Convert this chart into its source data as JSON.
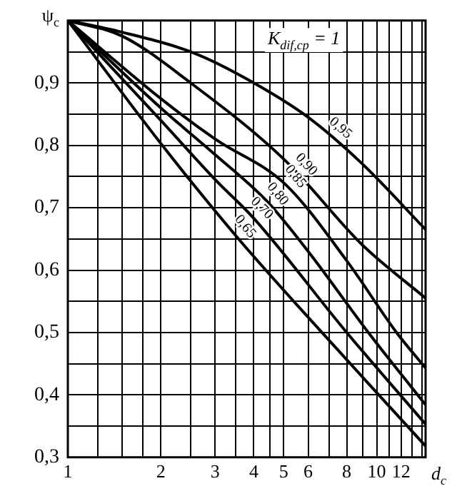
{
  "chart_data": {
    "type": "line",
    "xlabel": "d$_{c}$",
    "ylabel": "ψ$_{c}$",
    "log": "x",
    "grid": true,
    "line_style": "solid",
    "annotations": [
      "K$_{dif,cp}$ = 1"
    ],
    "xlim": [
      1,
      14.4
    ],
    "ylim": [
      0.3,
      1
    ],
    "xticks": [
      1,
      {
        "value": 1.25,
        "label": null
      },
      {
        "value": 1.5,
        "label": null
      },
      {
        "value": 1.75,
        "label": null
      },
      2,
      {
        "value": 2.5,
        "label": null
      },
      3,
      {
        "value": 3.5,
        "label": null
      },
      4,
      {
        "value": 4.5,
        "label": null
      },
      5,
      6,
      {
        "value": 7,
        "label": null
      },
      8,
      {
        "value": 9,
        "label": null
      },
      10,
      {
        "value": 11,
        "label": null
      },
      12,
      {
        "value": 13,
        "label": null
      },
      {
        "value": 14,
        "label": null
      }
    ],
    "yticks": [
      {
        "value": 0.3,
        "label": "0,3"
      },
      {
        "value": 0.35,
        "label": null
      },
      {
        "value": 0.4,
        "label": "0,4"
      },
      {
        "value": 0.45,
        "label": null
      },
      {
        "value": 0.5,
        "label": "0,5"
      },
      {
        "value": 0.55,
        "label": null
      },
      {
        "value": 0.6,
        "label": "0,6"
      },
      {
        "value": 0.65,
        "label": null
      },
      {
        "value": 0.7,
        "label": "0,7"
      },
      {
        "value": 0.75,
        "label": null
      },
      {
        "value": 0.8,
        "label": "0,8"
      },
      {
        "value": 0.85,
        "label": null
      },
      {
        "value": 0.9,
        "label": "0,9"
      },
      {
        "value": 0.95,
        "label": null
      },
      {
        "value": 1,
        "label": null
      }
    ],
    "series": [
      {
        "name": "0,95",
        "color": "#000000",
        "x": [
          1,
          1.45,
          2.56,
          3.81,
          6,
          9,
          14.4
        ],
        "values": [
          1,
          0.983,
          0.948,
          0.906,
          0.845,
          0.77,
          0.665
        ]
      },
      {
        "name": "0,90",
        "color": "#000000",
        "x": [
          1,
          1.5,
          2.5,
          5.05,
          9,
          14.4
        ],
        "values": [
          1,
          0.975,
          0.9,
          0.776,
          0.64,
          0.555
        ]
      },
      {
        "name": "0,85",
        "color": "#000000",
        "x": [
          1,
          2,
          3,
          5.05,
          8,
          11.6,
          14.4
        ],
        "values": [
          1,
          0.875,
          0.81,
          0.738,
          0.615,
          0.5,
          0.443
        ]
      },
      {
        "name": "0,80",
        "color": "#000000",
        "x": [
          1,
          2,
          3,
          4.4,
          6,
          9.4,
          14.4
        ],
        "values": [
          1,
          0.86,
          0.785,
          0.711,
          0.63,
          0.5,
          0.384
        ]
      },
      {
        "name": "0,70",
        "color": "#000000",
        "x": [
          1,
          2,
          3,
          4,
          8,
          14.4
        ],
        "values": [
          1,
          0.84,
          0.745,
          0.683,
          0.5,
          0.353
        ]
      },
      {
        "name": "0,65",
        "color": "#000000",
        "x": [
          1,
          2,
          3.53,
          6.65,
          14.4
        ],
        "values": [
          1,
          0.803,
          0.653,
          0.5,
          0.318
        ]
      }
    ]
  }
}
